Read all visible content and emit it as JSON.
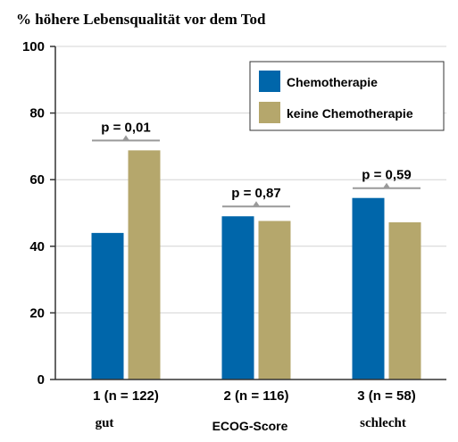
{
  "chart_data": {
    "type": "bar",
    "title": "% höhere Lebensqualität vor dem Tod",
    "xlabel": "ECOG-Score",
    "ylabel": "",
    "ylim": [
      0,
      100
    ],
    "yticks": [
      "0",
      "20",
      "40",
      "60",
      "80",
      "100"
    ],
    "grid": true,
    "legend_position": "top-right",
    "categories": [
      "1 (n = 122)",
      "2 (n = 116)",
      "3 (n = 58)"
    ],
    "category_sublabels": [
      "gut",
      "",
      "schlecht"
    ],
    "series": [
      {
        "name": "Chemotherapie",
        "color": "#0066aa",
        "values": [
          44,
          49,
          54.5
        ]
      },
      {
        "name": "keine Chemotherapie",
        "color": "#b5a76c",
        "values": [
          68.8,
          47.6,
          47.2
        ]
      }
    ],
    "annotations": [
      "p = 0,01",
      "p = 0,87",
      "p = 0,59"
    ],
    "colors": {
      "gridline": "#d4d4d4",
      "axis": "#333333",
      "plot_background": "#ffffff",
      "bracket": "#9a9a9a"
    }
  }
}
